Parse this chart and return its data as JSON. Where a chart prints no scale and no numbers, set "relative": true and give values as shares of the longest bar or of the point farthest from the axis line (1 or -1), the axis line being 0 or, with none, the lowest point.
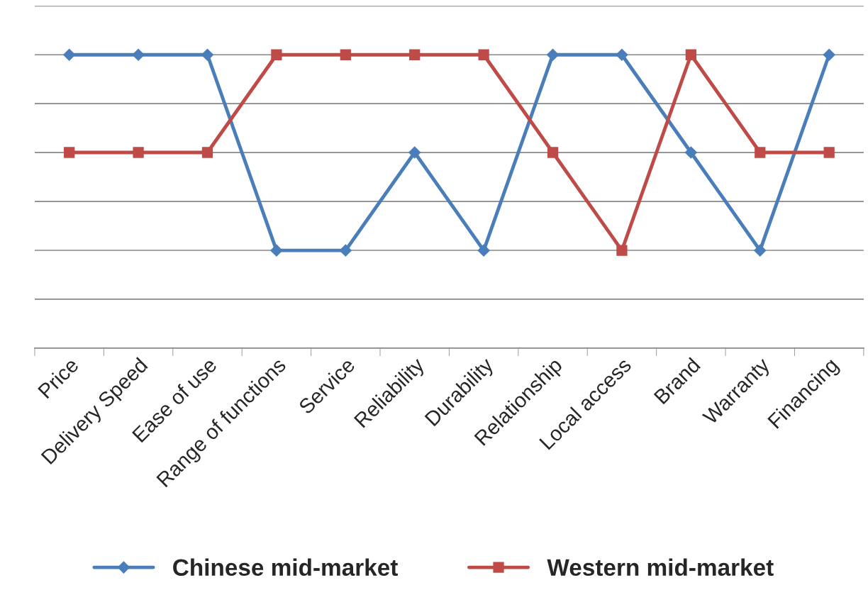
{
  "chart_data": {
    "type": "line",
    "relative": true,
    "grid": "y",
    "legend": "bottom",
    "categories": [
      "Price",
      "Delivery Speed",
      "Ease of use",
      "Range of functions",
      "Service",
      "Reliability",
      "Durability",
      "Relationship",
      "Local access",
      "Brand",
      "Warranty",
      "Financing"
    ],
    "series": [
      {
        "name": "Chinese mid-market",
        "color": "#4a7ebb",
        "marker": "diamond",
        "values": [
          1,
          1,
          1,
          0.333,
          0.333,
          0.667,
          0.333,
          1,
          1,
          0.667,
          0.333,
          1
        ]
      },
      {
        "name": "Western mid-market",
        "color": "#be4b48",
        "marker": "square",
        "values": [
          0.667,
          0.667,
          0.667,
          1,
          1,
          1,
          1,
          0.667,
          0.333,
          1,
          0.667,
          0.667
        ]
      }
    ]
  }
}
